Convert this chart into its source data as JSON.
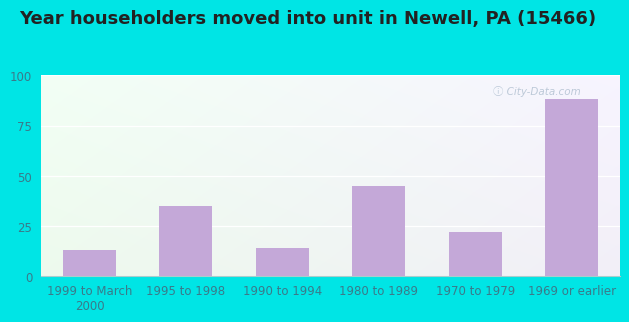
{
  "title": "Year householders moved into unit in Newell, PA (15466)",
  "categories": [
    "1999 to March\n2000",
    "1995 to 1998",
    "1990 to 1994",
    "1980 to 1989",
    "1970 to 1979",
    "1969 or earlier"
  ],
  "values": [
    13,
    35,
    14,
    45,
    22,
    88
  ],
  "bar_color": "#c4a8d8",
  "ylim": [
    0,
    100
  ],
  "yticks": [
    0,
    25,
    50,
    75,
    100
  ],
  "outer_background": "#00e5e5",
  "title_fontsize": 13,
  "tick_fontsize": 8.5,
  "tick_color": "#3a7a8a",
  "grid_color": "#ffffff",
  "watermark": "ⓘ City-Data.com"
}
